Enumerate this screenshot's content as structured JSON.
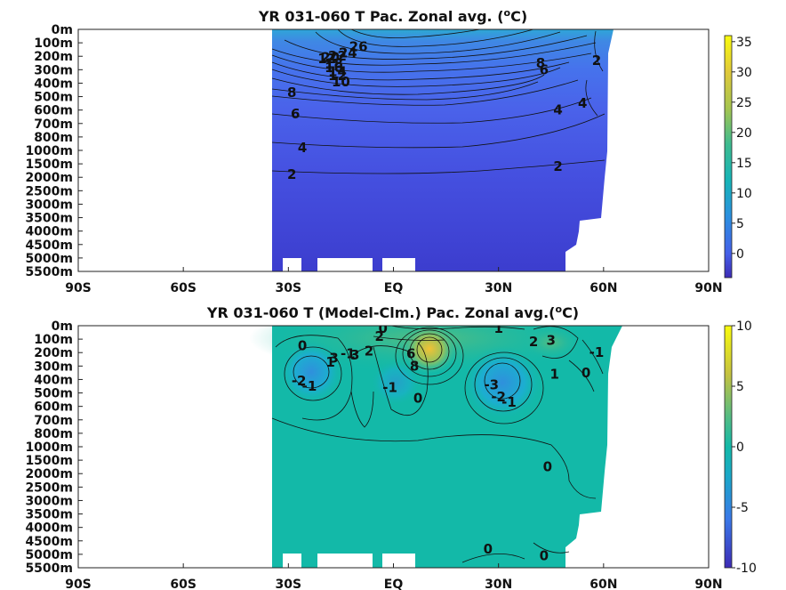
{
  "chart_data": [
    {
      "type": "heatmap",
      "title": "YR 031-060 T Pac. Zonal avg. (",
      "title_sup": "o",
      "title_end": "C)",
      "x_ticks": [
        "90S",
        "60S",
        "30S",
        "EQ",
        "30N",
        "60N",
        "90N"
      ],
      "xlim": [
        -90,
        90
      ],
      "y_ticks": [
        "0m",
        "100m",
        "200m",
        "300m",
        "400m",
        "500m",
        "600m",
        "700m",
        "800m",
        "1000m",
        "1500m",
        "2000m",
        "2500m",
        "3000m",
        "3500m",
        "4000m",
        "4500m",
        "5000m",
        "5500m"
      ],
      "colorbar_ticks": [
        "35",
        "30",
        "25",
        "20",
        "15",
        "10",
        "5",
        "0"
      ],
      "colorbar_range": [
        -4,
        36
      ],
      "data_lat_range": [
        -35,
        62
      ],
      "contour_labels": [
        {
          "text": "26",
          "lat": -10,
          "z": 1.3
        },
        {
          "text": "24",
          "lat": -13,
          "z": 1.75
        },
        {
          "text": "22",
          "lat": -16,
          "z": 2.0
        },
        {
          "text": "20",
          "lat": -18,
          "z": 2.1
        },
        {
          "text": "12",
          "lat": -19,
          "z": 2.2
        },
        {
          "text": "18",
          "lat": -17,
          "z": 2.55
        },
        {
          "text": "16",
          "lat": -17,
          "z": 2.85
        },
        {
          "text": "14",
          "lat": -16,
          "z": 3.15
        },
        {
          "text": "12",
          "lat": -16,
          "z": 3.45
        },
        {
          "text": "10",
          "lat": -15,
          "z": 3.9
        },
        {
          "text": "8",
          "lat": -29,
          "z": 4.7
        },
        {
          "text": "8",
          "lat": 42,
          "z": 2.5
        },
        {
          "text": "6",
          "lat": 43,
          "z": 3.0
        },
        {
          "text": "2",
          "lat": 58,
          "z": 2.3
        },
        {
          "text": "4",
          "lat": 54,
          "z": 5.5
        },
        {
          "text": "4",
          "lat": 47,
          "z": 6.0
        },
        {
          "text": "6",
          "lat": -28,
          "z": 6.3
        },
        {
          "text": "4",
          "lat": -26,
          "z": 8.8
        },
        {
          "text": "2",
          "lat": -29,
          "z": 10.8
        },
        {
          "text": "2",
          "lat": 47,
          "z": 10.2
        }
      ]
    },
    {
      "type": "heatmap",
      "title": "YR 031-060 T (Model-Clm.) Pac. Zonal avg.(",
      "title_sup": "o",
      "title_end": "C)",
      "x_ticks": [
        "90S",
        "60S",
        "30S",
        "EQ",
        "30N",
        "60N",
        "90N"
      ],
      "xlim": [
        -90,
        90
      ],
      "y_ticks": [
        "0m",
        "100m",
        "200m",
        "300m",
        "400m",
        "500m",
        "600m",
        "700m",
        "800m",
        "1000m",
        "1500m",
        "2000m",
        "2500m",
        "3000m",
        "3500m",
        "4000m",
        "4500m",
        "5000m",
        "5500m"
      ],
      "colorbar_ticks": [
        "10",
        "5",
        "0",
        "-5",
        "-10"
      ],
      "colorbar_range": [
        -10,
        10
      ],
      "data_lat_range": [
        -35,
        62
      ],
      "contour_labels": [
        {
          "text": "0",
          "lat": -3,
          "z": 0.2
        },
        {
          "text": "1",
          "lat": 30,
          "z": 0.2
        },
        {
          "text": "2",
          "lat": -4,
          "z": 0.8
        },
        {
          "text": "0",
          "lat": -26,
          "z": 1.5
        },
        {
          "text": "3",
          "lat": -11,
          "z": 2.2
        },
        {
          "text": "2",
          "lat": -7,
          "z": 1.9
        },
        {
          "text": "-1",
          "lat": -13,
          "z": 2.1
        },
        {
          "text": "3",
          "lat": -17,
          "z": 2.4
        },
        {
          "text": "1",
          "lat": -18,
          "z": 2.7
        },
        {
          "text": "2",
          "lat": 40,
          "z": 1.2
        },
        {
          "text": "3",
          "lat": 45,
          "z": 1.1
        },
        {
          "text": "-1",
          "lat": 58,
          "z": 2.0
        },
        {
          "text": "0",
          "lat": 55,
          "z": 3.5
        },
        {
          "text": "1",
          "lat": 46,
          "z": 3.6
        },
        {
          "text": "6",
          "lat": 5,
          "z": 2.1
        },
        {
          "text": "8",
          "lat": 6,
          "z": 3.0
        },
        {
          "text": "-2",
          "lat": -27,
          "z": 4.1
        },
        {
          "text": "-1",
          "lat": -24,
          "z": 4.5
        },
        {
          "text": "-1",
          "lat": -1,
          "z": 4.6
        },
        {
          "text": "0",
          "lat": 7,
          "z": 5.4
        },
        {
          "text": "-3",
          "lat": 28,
          "z": 4.4
        },
        {
          "text": "-2",
          "lat": 30,
          "z": 5.3
        },
        {
          "text": "-1",
          "lat": 33,
          "z": 5.7
        },
        {
          "text": "0",
          "lat": 44,
          "z": 10.5
        },
        {
          "text": "0",
          "lat": 27,
          "z": 16.6
        },
        {
          "text": "0",
          "lat": 43,
          "z": 17.1
        }
      ]
    }
  ],
  "colors": {
    "warm": "#e8c22a",
    "cold": "#3d36c8",
    "mid": "#13b9a8",
    "mask": "#ffffff"
  }
}
